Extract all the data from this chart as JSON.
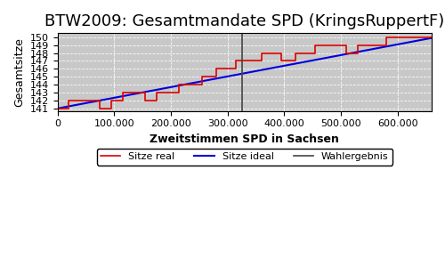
{
  "title": "BTW2009: Gesamtmandate SPD (KringsRuppertF)",
  "xlabel": "Zweitstimmen SPD in Sachsen",
  "ylabel": "Gesamtsitze",
  "xlim": [
    0,
    660000
  ],
  "ylim": [
    140.7,
    150.5
  ],
  "yticks": [
    141,
    142,
    143,
    144,
    145,
    146,
    147,
    148,
    149,
    150
  ],
  "xticks": [
    0,
    100000,
    200000,
    300000,
    400000,
    500000,
    600000
  ],
  "xtick_labels": [
    "0",
    "100.000",
    "200.000",
    "300.000",
    "400.000",
    "500.000",
    "600.000"
  ],
  "wahlergebnis_x": 325000,
  "background_color": "#c8c8c8",
  "ideal_color": "#0000dd",
  "real_color": "#dd0000",
  "wahlergebnis_color": "#444444",
  "legend_labels": [
    "Sitze real",
    "Sitze ideal",
    "Wahlergebnis"
  ],
  "title_fontsize": 13,
  "axis_label_fontsize": 9,
  "ideal_start_y": 141.0,
  "ideal_end_y": 149.9,
  "real_steps": [
    [
      0,
      141
    ],
    [
      20000,
      141
    ],
    [
      20000,
      142
    ],
    [
      75000,
      142
    ],
    [
      75000,
      141
    ],
    [
      75000,
      141
    ],
    [
      95000,
      141
    ],
    [
      95000,
      142
    ],
    [
      115000,
      142
    ],
    [
      115000,
      143
    ],
    [
      155000,
      143
    ],
    [
      155000,
      142
    ],
    [
      175000,
      142
    ],
    [
      175000,
      143
    ],
    [
      215000,
      143
    ],
    [
      215000,
      144
    ],
    [
      255000,
      144
    ],
    [
      255000,
      145
    ],
    [
      280000,
      145
    ],
    [
      280000,
      146
    ],
    [
      315000,
      146
    ],
    [
      315000,
      147
    ],
    [
      360000,
      147
    ],
    [
      360000,
      148
    ],
    [
      395000,
      148
    ],
    [
      395000,
      147
    ],
    [
      420000,
      147
    ],
    [
      420000,
      148
    ],
    [
      455000,
      148
    ],
    [
      455000,
      149
    ],
    [
      510000,
      149
    ],
    [
      510000,
      148
    ],
    [
      530000,
      148
    ],
    [
      530000,
      149
    ],
    [
      580000,
      149
    ],
    [
      580000,
      150
    ],
    [
      660000,
      150
    ]
  ]
}
